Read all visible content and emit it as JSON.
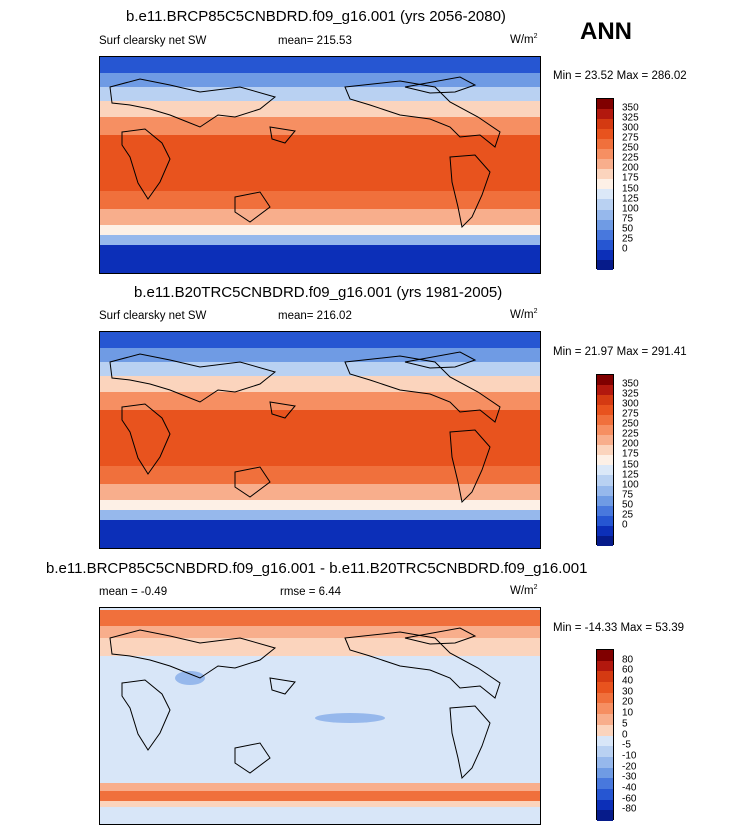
{
  "season": "ANN",
  "units": "W/m",
  "units_sup": "2",
  "panels": [
    {
      "title": "b.e11.BRCP85C5CNBDRD.f09_g16.001 (yrs 2056-2080)",
      "subtitle": "Surf clearsky net SW",
      "mean": "mean= 215.53",
      "minmax": "Min =  23.52 Max = 286.02"
    },
    {
      "title": "b.e11.B20TRC5CNBDRD.f09_g16.001 (yrs 1981-2005)",
      "subtitle": "Surf clearsky net SW",
      "mean": "mean= 216.02",
      "minmax": "Min =  21.97 Max = 291.41"
    },
    {
      "title": "b.e11.BRCP85C5CNBDRD.f09_g16.001 - b.e11.B20TRC5CNBDRD.f09_g16.001",
      "mean": "mean =  -0.49",
      "rmse": "rmse =   6.44",
      "minmax": "Min = -14.33 Max =  53.39"
    }
  ],
  "abs_scale": {
    "labels": [
      "350",
      "325",
      "300",
      "275",
      "250",
      "225",
      "200",
      "175",
      "150",
      "125",
      "100",
      "75",
      "50",
      "25",
      "0"
    ],
    "colors": [
      "#800000",
      "#b2180e",
      "#d43a12",
      "#e8531e",
      "#f0703c",
      "#f68f62",
      "#f8ae8c",
      "#fbd4bd",
      "#fdf0e6",
      "#dbe8f8",
      "#b9d1f2",
      "#96b8ec",
      "#6f9be4",
      "#4878dd",
      "#2656d2",
      "#0c2fb8",
      "#061b8a"
    ]
  },
  "diff_scale": {
    "labels": [
      "80",
      "60",
      "40",
      "30",
      "20",
      "10",
      "5",
      "0",
      "-5",
      "-10",
      "-20",
      "-30",
      "-40",
      "-60",
      "-80"
    ],
    "colors": [
      "#800000",
      "#b2180e",
      "#d43a12",
      "#e8531e",
      "#f0703c",
      "#f68f62",
      "#f8ae8c",
      "#fbd4bd",
      "#d8e6f8",
      "#b9d1f2",
      "#96b8ec",
      "#6f9be4",
      "#4878dd",
      "#2656d2",
      "#0c2fb8",
      "#061b8a"
    ]
  }
}
